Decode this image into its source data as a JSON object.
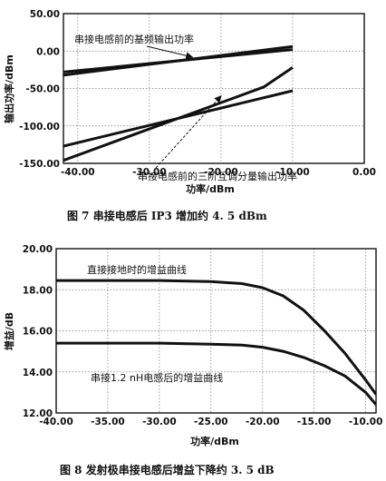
{
  "chart_data": [
    {
      "type": "line",
      "title": "",
      "xlabel": "功率/dBm",
      "ylabel": "输出功率/dBm",
      "xlim": [
        -42,
        0
      ],
      "ylim": [
        -150,
        50
      ],
      "xticks": [
        -40,
        -30,
        -20,
        -10,
        0
      ],
      "xtick_labels": [
        "-40.00",
        "-30.00",
        "-20.00",
        "-10.00",
        "0.00"
      ],
      "yticks": [
        -150,
        -100,
        -50,
        0,
        50
      ],
      "ytick_labels": [
        "-150.00",
        "-100.00",
        "-50.00",
        "0.00",
        "50.00"
      ],
      "grid": true,
      "series": [
        {
          "x": [
            -42,
            -10
          ],
          "y": [
            -28,
            2
          ]
        },
        {
          "x": [
            -42,
            -10
          ],
          "y": [
            -32,
            6
          ]
        },
        {
          "x": [
            -42,
            -10
          ],
          "y": [
            -127,
            -53
          ]
        },
        {
          "x": [
            -42,
            -14,
            -10
          ],
          "y": [
            -146,
            -48,
            -22
          ]
        }
      ],
      "annotations": [
        {
          "text": "串接电感前的基频输出功率",
          "x": -36.5,
          "y": 18,
          "arrow_to": [
            -24,
            -8
          ]
        },
        {
          "text": "串接电感前的三阶互调分量输出功率",
          "x": -26,
          "y": -105,
          "arrow_to": [
            -20,
            -60
          ]
        }
      ],
      "caption": "图 7   串接电感后 IP3 增加约 4. 5 dBm"
    },
    {
      "type": "line",
      "title": "",
      "xlabel": "功率/dBm",
      "ylabel": "增益/dB",
      "xlim": [
        -40,
        -9
      ],
      "ylim": [
        12,
        20
      ],
      "xticks": [
        -40,
        -35,
        -30,
        -25,
        -20,
        -15,
        -10
      ],
      "xtick_labels": [
        "-40.00",
        "-35.00",
        "-30.00",
        "-25.00",
        "-20.00",
        "-15.00",
        "-10.00"
      ],
      "yticks": [
        12,
        14,
        16,
        18,
        20
      ],
      "ytick_labels": [
        "12.00",
        "14.00",
        "16.00",
        "18.00",
        "20.00"
      ],
      "grid": true,
      "series": [
        {
          "x": [
            -40,
            -30,
            -25,
            -22,
            -20,
            -18,
            -16,
            -14,
            -12,
            -10,
            -9
          ],
          "y": [
            18.45,
            18.45,
            18.4,
            18.3,
            18.1,
            17.7,
            17.0,
            16.0,
            14.9,
            13.6,
            12.9
          ]
        },
        {
          "x": [
            -40,
            -30,
            -25,
            -22,
            -20,
            -18,
            -16,
            -14,
            -12,
            -10,
            -9
          ],
          "y": [
            15.4,
            15.4,
            15.35,
            15.3,
            15.2,
            15.0,
            14.7,
            14.3,
            13.8,
            13.0,
            12.4
          ]
        }
      ],
      "annotations": [
        {
          "text": "直接接地时的增益曲线",
          "x": -39,
          "y": 19.1
        },
        {
          "text": "串接1.2 nH电感后的增益曲线",
          "x": -38,
          "y": 13.8
        }
      ],
      "caption": "图 8   发射极串接电感后增益下降约 3. 5 dB"
    }
  ]
}
